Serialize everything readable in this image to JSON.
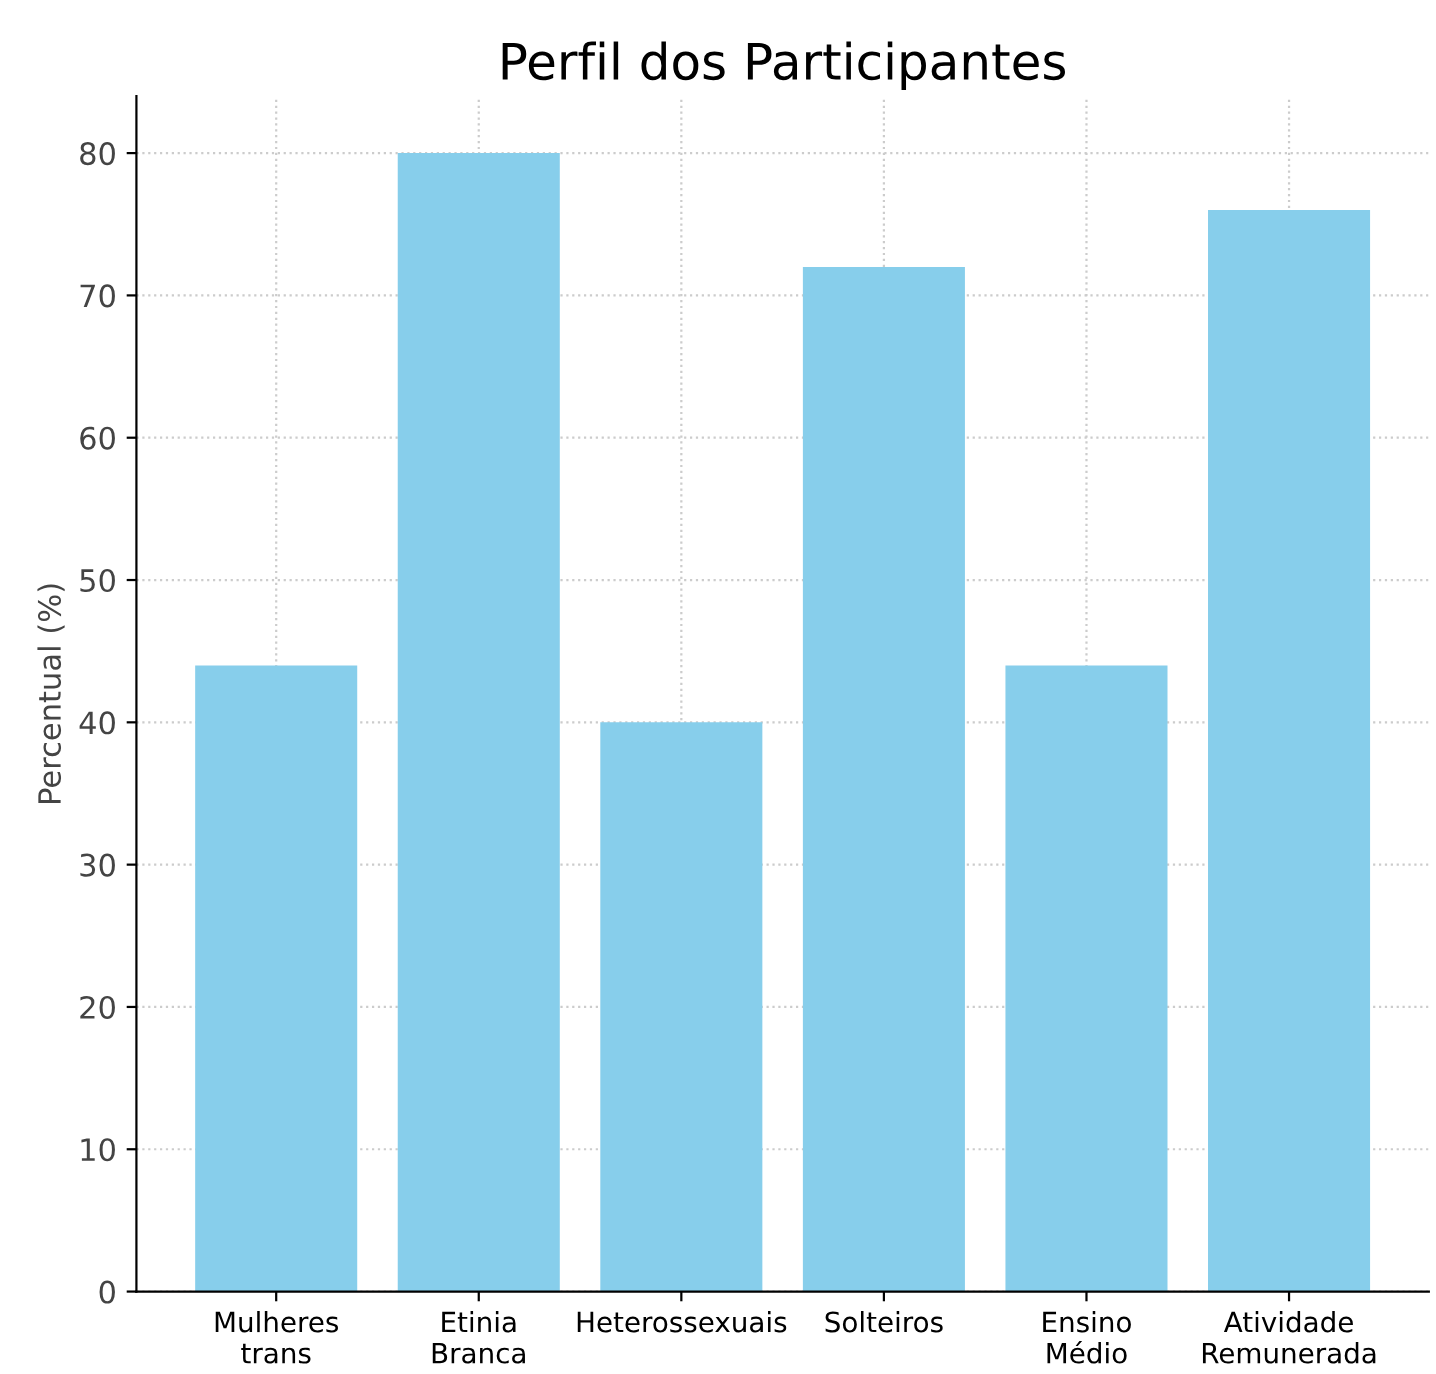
{
  "chart_data": {
    "type": "bar",
    "title": "Perfil dos Participantes",
    "ylabel": "Percentual (%)",
    "categories": [
      "Mulheres\ntrans",
      "Etinia\nBranca",
      "Heterossexuais",
      "Solteiros",
      "Ensino\nMédio",
      "Atividade\nRemunerada"
    ],
    "values": [
      44,
      80,
      40,
      72,
      44,
      76
    ],
    "color": "#87ceeb",
    "ylim": [
      0,
      84
    ],
    "yticks": [
      0,
      10,
      20,
      30,
      40,
      50,
      60,
      70,
      80
    ],
    "grid": true
  }
}
